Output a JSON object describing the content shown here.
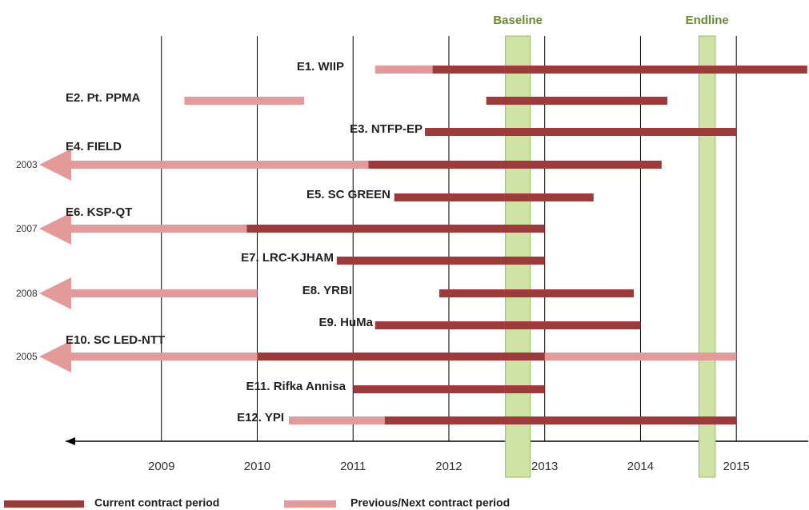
{
  "chart_data": {
    "type": "timeline",
    "xlim": [
      2008,
      2015.75
    ],
    "xticks": [
      2009,
      2010,
      2011,
      2012,
      2013,
      2014,
      2015
    ],
    "colors": {
      "current": "#9e3a3a",
      "previous": "#e39a9a"
    },
    "phases": [
      {
        "name": "Baseline",
        "start": 2012.59,
        "end": 2012.85
      },
      {
        "name": "Endline",
        "start": 2014.61,
        "end": 2014.78
      }
    ],
    "rows": [
      {
        "label": "E1. WIIP",
        "segments": [
          {
            "type": "previous",
            "start": 2011.23,
            "end": 2011.83
          },
          {
            "type": "current",
            "start": 2011.83,
            "end": 2015.74
          }
        ]
      },
      {
        "label": "E2. Pt. PPMA",
        "segments": [
          {
            "type": "previous",
            "start": 2009.24,
            "end": 2010.49
          },
          {
            "type": "current",
            "start": 2012.39,
            "end": 2014.28
          }
        ]
      },
      {
        "label": "E3. NTFP-EP",
        "segments": [
          {
            "type": "current",
            "start": 2011.75,
            "end": 2015.0
          }
        ]
      },
      {
        "label": "E4. FIELD",
        "from_label": "2003",
        "segments": [
          {
            "type": "previous",
            "end": 2011.16
          },
          {
            "type": "current",
            "start": 2011.16,
            "end": 2014.22
          }
        ]
      },
      {
        "label": "E5. SC GREEN",
        "segments": [
          {
            "type": "current",
            "start": 2011.43,
            "end": 2013.51
          }
        ]
      },
      {
        "label": "E6. KSP-QT",
        "from_label": "2007",
        "segments": [
          {
            "type": "previous",
            "end": 2009.89
          },
          {
            "type": "current",
            "start": 2009.89,
            "end": 2013.0
          }
        ]
      },
      {
        "label": "E7. LRC-KJHAM",
        "segments": [
          {
            "type": "current",
            "start": 2010.83,
            "end": 2013.0
          }
        ]
      },
      {
        "label": "E8. YRBI",
        "from_label": "2008",
        "segments": [
          {
            "type": "previous",
            "end": 2010.0
          },
          {
            "type": "current",
            "start": 2011.9,
            "end": 2013.93
          }
        ]
      },
      {
        "label": "E9. HuMa",
        "segments": [
          {
            "type": "current",
            "start": 2011.23,
            "end": 2014.0
          }
        ]
      },
      {
        "label": "E10. SC LED-NTT",
        "from_label": "2005",
        "segments": [
          {
            "type": "previous",
            "end": 2010.0
          },
          {
            "type": "current",
            "start": 2010.0,
            "end": 2013.0
          },
          {
            "type": "previous",
            "start": 2013.0,
            "end": 2015.0
          }
        ]
      },
      {
        "label": "E11. Rifka Annisa",
        "segments": [
          {
            "type": "current",
            "start": 2011.0,
            "end": 2013.0
          }
        ]
      },
      {
        "label": "E12. YPI",
        "segments": [
          {
            "type": "previous",
            "start": 2010.33,
            "end": 2011.33
          },
          {
            "type": "current",
            "start": 2011.33,
            "end": 2015.0
          }
        ]
      }
    ],
    "legend": [
      {
        "type": "current",
        "label": "Current contract period"
      },
      {
        "type": "previous",
        "label": "Previous/Next contract period"
      }
    ]
  }
}
